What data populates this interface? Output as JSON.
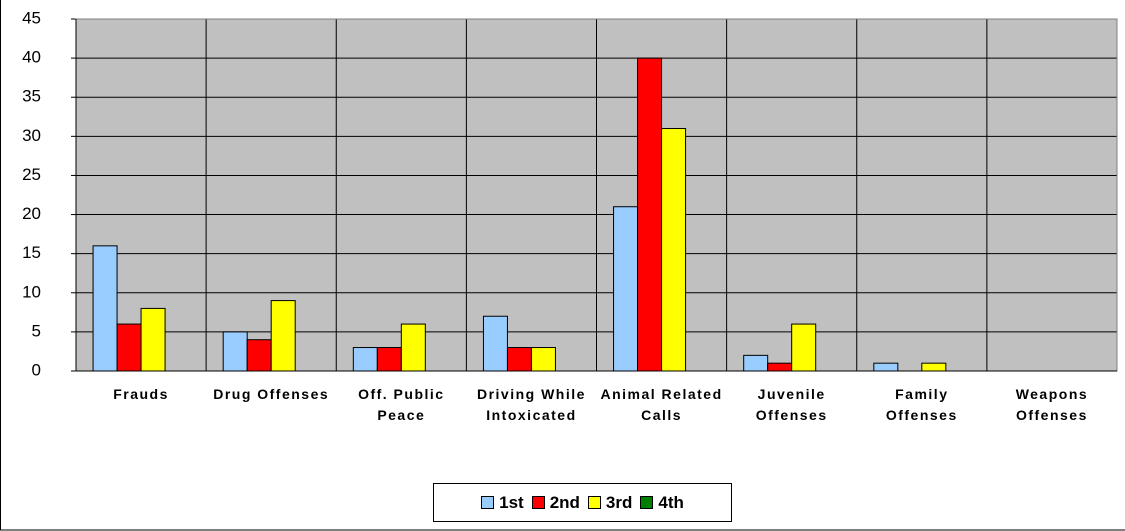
{
  "chart_data": {
    "type": "bar",
    "categories": [
      "Frauds",
      "Drug Offenses",
      "Off. Public Peace",
      "Driving While Intoxicated",
      "Animal Related Calls",
      "Juvenile Offenses",
      "Family Offenses",
      "Weapons Offenses"
    ],
    "series": [
      {
        "name": "1st",
        "color": "#99ccff",
        "values": [
          16,
          5,
          3,
          7,
          21,
          2,
          1,
          0
        ]
      },
      {
        "name": "2nd",
        "color": "#ff0000",
        "values": [
          6,
          4,
          3,
          3,
          40,
          1,
          0,
          0
        ]
      },
      {
        "name": "3rd",
        "color": "#ffff00",
        "values": [
          8,
          9,
          6,
          3,
          31,
          6,
          1,
          0
        ]
      },
      {
        "name": "4th",
        "color": "#008000",
        "values": [
          0,
          0,
          0,
          0,
          0,
          0,
          0,
          0
        ]
      }
    ],
    "ylim": [
      0,
      45
    ],
    "yticks": [
      0,
      5,
      10,
      15,
      20,
      25,
      30,
      35,
      40,
      45
    ],
    "grid": true,
    "legend": "bottom"
  }
}
